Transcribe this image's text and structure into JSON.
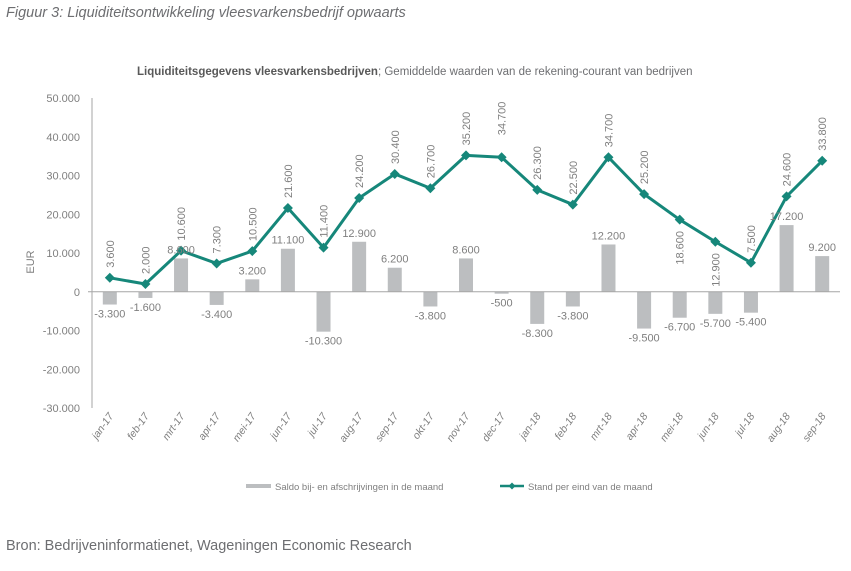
{
  "figure_caption": "Figuur 3: Liquiditeitsontwikkeling vleesvarkensbedrijf opwaarts",
  "source": "Bron: Bedrijveninformatienet, Wageningen Economic Research",
  "chart_data": {
    "type": "bar+line",
    "title_bold": "Liquiditeitsgegevens vleesvarkensbedrijven",
    "title_rest": "; Gemiddelde waarden van de rekening-courant van bedrijven",
    "ylabel": "EUR",
    "xlabel": "",
    "ylim": [
      -30000,
      50000
    ],
    "yticks": [
      50000,
      40000,
      30000,
      20000,
      10000,
      0,
      -10000,
      -20000,
      -30000
    ],
    "ytick_labels": [
      "50.000",
      "40.000",
      "30.000",
      "20.000",
      "10.000",
      "0",
      "-10.000",
      "-20.000",
      "-30.000"
    ],
    "grid": false,
    "legend_position": "bottom",
    "categories": [
      "jan-17",
      "feb-17",
      "mrt-17",
      "apr-17",
      "mei-17",
      "jun-17",
      "jul-17",
      "aug-17",
      "sep-17",
      "okt-17",
      "nov-17",
      "dec-17",
      "jan-18",
      "feb-18",
      "mrt-18",
      "apr-18",
      "mei-18",
      "jun-18",
      "jul-18",
      "aug-18",
      "sep-18"
    ],
    "series": [
      {
        "name": "Saldo bij- en afschrijvingen in de maand",
        "type": "bar",
        "color": "#bcbec0",
        "values": [
          -3300,
          -1600,
          8600,
          -3400,
          3200,
          11100,
          -10300,
          12900,
          6200,
          -3800,
          8600,
          -500,
          -8300,
          -3800,
          12200,
          -9500,
          -6700,
          -5700,
          -5400,
          17200,
          9200
        ],
        "labels": [
          "-3.300",
          "-1.600",
          "8.600",
          "-3.400",
          "3.200",
          "11.100",
          "-10.300",
          "12.900",
          "6.200",
          "-3.800",
          "8.600",
          "-500",
          "-8.300",
          "-3.800",
          "12.200",
          "-9.500",
          "-6.700",
          "-5.700",
          "-5.400",
          "17.200",
          "9.200"
        ]
      },
      {
        "name": "Stand per eind van de maand",
        "type": "line",
        "color": "#16877a",
        "values": [
          3600,
          2000,
          10600,
          7300,
          10500,
          21600,
          11400,
          24200,
          30400,
          26700,
          35200,
          34700,
          26300,
          22500,
          34700,
          25200,
          18600,
          12900,
          7500,
          24600,
          33800
        ],
        "labels": [
          "3.600",
          "2.000",
          "10.600",
          "7.300",
          "10.500",
          "21.600",
          "11.400",
          "24.200",
          "30.400",
          "26.700",
          "35.200",
          "34.700",
          "26.300",
          "22.500",
          "34.700",
          "25.200",
          "18.600",
          "12.900",
          "7.500",
          "24.600",
          "33.800"
        ]
      }
    ]
  }
}
